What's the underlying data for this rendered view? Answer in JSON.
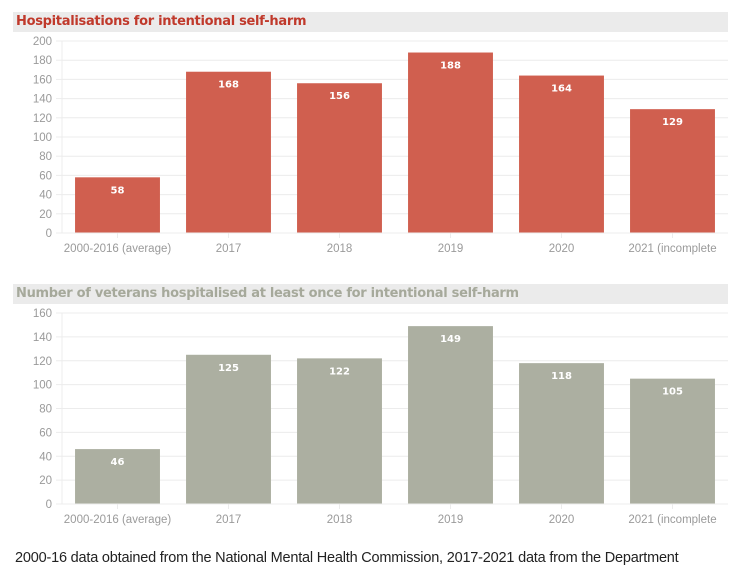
{
  "colors": {
    "chart1_bar": "#d05f4f",
    "chart1_title": "#c0392b",
    "chart2_bar": "#acafa1",
    "chart2_title": "#a6a99b",
    "grid": "#ececec",
    "tick_text": "#9a9a9a"
  },
  "footnote": "2000-16 data obtained from the National Mental Health Commission, 2017-2021 data from the Department",
  "chart_data": [
    {
      "type": "bar",
      "title": "Hospitalisations for intentional self-harm",
      "xlabel": "",
      "ylabel": "",
      "categories": [
        "2000-2016 (average)",
        "2017",
        "2018",
        "2019",
        "2020",
        "2021 (incomplete"
      ],
      "values": [
        58,
        168,
        156,
        188,
        164,
        129
      ],
      "ylim": [
        0,
        200
      ],
      "yticks": [
        0,
        20,
        40,
        60,
        80,
        100,
        120,
        140,
        160,
        180,
        200
      ],
      "grid": true,
      "data_labels": true
    },
    {
      "type": "bar",
      "title": "Number of veterans hospitalised at least once for intentional self-harm",
      "xlabel": "",
      "ylabel": "",
      "categories": [
        "2000-2016 (average)",
        "2017",
        "2018",
        "2019",
        "2020",
        "2021 (incomplete"
      ],
      "values": [
        46,
        125,
        122,
        149,
        118,
        105
      ],
      "ylim": [
        0,
        160
      ],
      "yticks": [
        0,
        20,
        40,
        60,
        80,
        100,
        120,
        140,
        160
      ],
      "grid": true,
      "data_labels": true
    }
  ]
}
